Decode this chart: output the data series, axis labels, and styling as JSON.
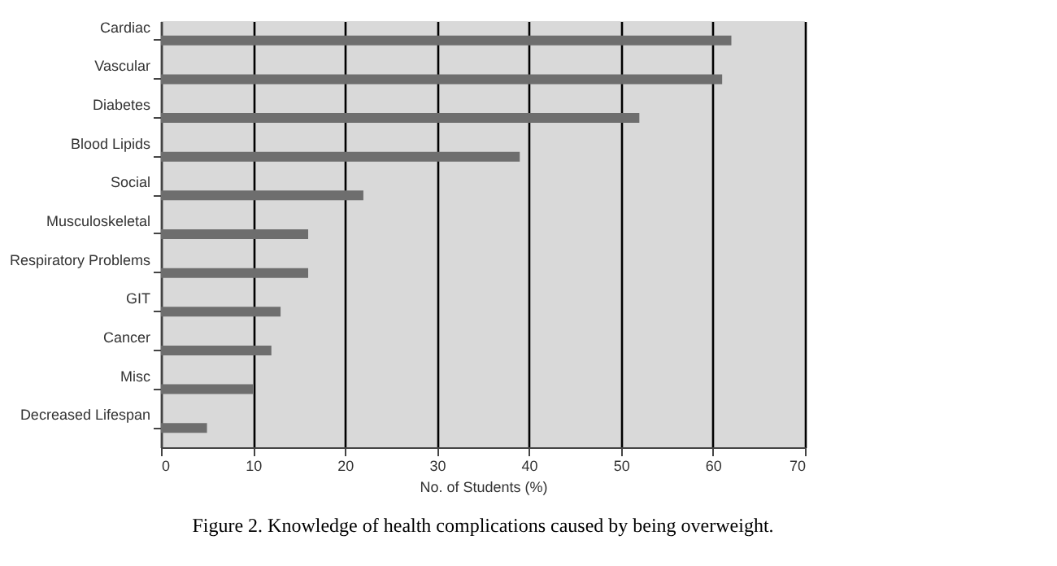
{
  "chart_data": {
    "type": "bar",
    "orientation": "horizontal",
    "categories": [
      "Cardiac",
      "Vascular",
      "Diabetes",
      "Blood Lipids",
      "Social",
      "Musculoskeletal",
      "Respiratory Problems",
      "GIT",
      "Cancer",
      "Misc",
      "Decreased Lifespan"
    ],
    "values": [
      62,
      61,
      52,
      39,
      22,
      16,
      16,
      13,
      12,
      10,
      5
    ],
    "color": "#6e6e6e",
    "xlim": [
      0,
      70
    ],
    "xticks": [
      0,
      10,
      20,
      30,
      40,
      50,
      60,
      70
    ],
    "xlabel": "No. of Students (%)",
    "grid": "x",
    "annotations": [
      "Figure 2. Knowledge of health complications caused by being overweight."
    ]
  }
}
